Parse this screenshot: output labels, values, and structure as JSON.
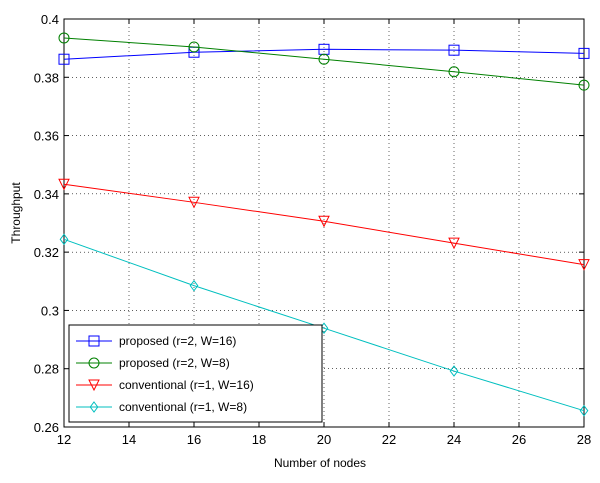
{
  "chart_data": {
    "type": "line",
    "xlabel": "Number of nodes",
    "ylabel": "Throughput",
    "xlim": [
      12,
      28
    ],
    "ylim": [
      0.26,
      0.4
    ],
    "xticks": [
      "12",
      "14",
      "16",
      "18",
      "20",
      "22",
      "24",
      "26",
      "28"
    ],
    "yticks": [
      "0.26",
      "0.28",
      "0.3",
      "0.32",
      "0.34",
      "0.36",
      "0.38",
      "0.4"
    ],
    "grid": true,
    "legend_position": "bottom-left",
    "x": [
      12,
      16,
      20,
      24,
      28
    ],
    "series": [
      {
        "name": "proposed (r=2, W=16)",
        "values": [
          0.3862,
          0.3886,
          0.3896,
          0.3893,
          0.3882
        ],
        "color": "#0000FF",
        "marker": "square"
      },
      {
        "name": "proposed (r=2, W=8)",
        "values": [
          0.3935,
          0.3904,
          0.3862,
          0.3819,
          0.3773
        ],
        "color": "#008000",
        "marker": "circle"
      },
      {
        "name": "conventional (r=1, W=16)",
        "values": [
          0.3433,
          0.3371,
          0.3306,
          0.3231,
          0.3157
        ],
        "color": "#FF0000",
        "marker": "triangle-down"
      },
      {
        "name": "conventional (r=1, W=8)",
        "values": [
          0.3244,
          0.3085,
          0.2939,
          0.2792,
          0.2656
        ],
        "color": "#00BFBF",
        "marker": "diamond"
      }
    ]
  }
}
